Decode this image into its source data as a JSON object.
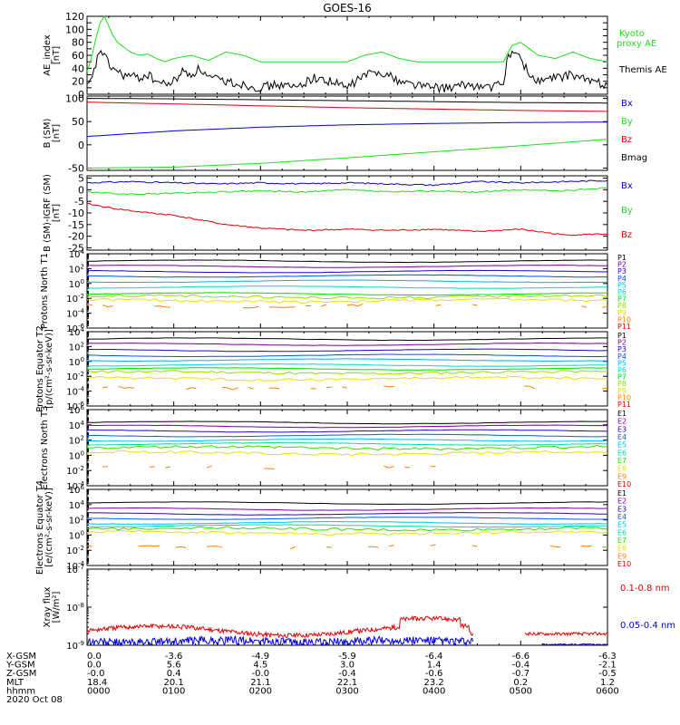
{
  "title": "GOES-16",
  "colors": {
    "black": "#000000",
    "red": "#e00000",
    "green": "#22dd22",
    "blue": "#0000dd",
    "P": [
      "#000000",
      "#7a0090",
      "#2a00c8",
      "#0050ff",
      "#00b0ff",
      "#00d8d0",
      "#00e000",
      "#90e000",
      "#e8e000",
      "#ff8000",
      "#e00000"
    ],
    "E": [
      "#000000",
      "#8000a0",
      "#3000d0",
      "#0060ff",
      "#00c0ff",
      "#00e0a0",
      "#30e000",
      "#e8e000",
      "#ff8000",
      "#e00000"
    ]
  },
  "chart_data": [
    {
      "type": "line",
      "id": "ae",
      "ylabel": "AE_index [nT]",
      "ylim": [
        0,
        120
      ],
      "yticks": [
        0,
        10,
        20,
        30,
        40,
        50,
        60,
        70,
        80,
        90,
        100,
        110,
        120
      ],
      "yticklabels": [
        "0",
        "",
        "20",
        "",
        "40",
        "",
        "60",
        "",
        "80",
        "",
        "100",
        "",
        "120"
      ],
      "legend": [
        {
          "name": "Kyoto proxy AE",
          "color": "#22dd22"
        },
        {
          "name": "Themis AE",
          "color": "#000000"
        }
      ],
      "series": [
        {
          "name": "Kyoto proxy AE",
          "color": "#22dd22",
          "x": [
            0,
            0.05,
            0.1,
            0.15,
            0.2,
            0.25,
            0.3,
            0.35,
            0.4,
            0.5,
            0.6,
            0.7,
            0.8,
            0.9,
            1.0,
            1.2,
            1.4,
            1.6,
            1.8,
            2.0,
            2.2,
            2.4,
            2.6,
            2.8,
            3.0,
            3.2,
            3.4,
            3.6,
            3.8,
            4.0,
            4.2,
            4.4,
            4.6,
            4.8,
            4.9,
            5.0,
            5.2,
            5.4,
            5.6,
            5.8,
            6.0
          ],
          "y": [
            35,
            55,
            85,
            110,
            120,
            105,
            90,
            80,
            75,
            65,
            60,
            62,
            55,
            50,
            55,
            60,
            52,
            65,
            60,
            50,
            50,
            50,
            50,
            50,
            50,
            60,
            65,
            55,
            50,
            50,
            50,
            50,
            50,
            50,
            75,
            80,
            60,
            55,
            65,
            55,
            50
          ]
        },
        {
          "name": "Themis AE",
          "color": "#000000",
          "x": [
            0,
            0.05,
            0.1,
            0.15,
            0.2,
            0.25,
            0.3,
            0.35,
            0.4,
            0.5,
            0.6,
            0.7,
            0.8,
            0.9,
            1.0,
            1.1,
            1.2,
            1.3,
            1.4,
            1.6,
            1.8,
            2.0,
            2.2,
            2.4,
            2.6,
            2.8,
            3.0,
            3.2,
            3.4,
            3.6,
            3.8,
            4.0,
            4.2,
            4.4,
            4.6,
            4.8,
            4.85,
            4.9,
            5.0,
            5.1,
            5.2,
            5.4,
            5.6,
            5.8,
            6.0
          ],
          "y": [
            10,
            20,
            45,
            70,
            60,
            45,
            40,
            35,
            30,
            28,
            25,
            30,
            20,
            15,
            20,
            35,
            30,
            40,
            25,
            20,
            15,
            10,
            15,
            10,
            25,
            20,
            10,
            30,
            35,
            20,
            15,
            10,
            10,
            15,
            10,
            15,
            60,
            65,
            55,
            30,
            20,
            25,
            30,
            20,
            15
          ]
        }
      ]
    },
    {
      "type": "line",
      "id": "bsm",
      "ylabel": "B (SM) [nT]",
      "ylim": [
        -55,
        105
      ],
      "yticks": [
        -50,
        0,
        50,
        100
      ],
      "yticklabels": [
        "-50",
        "0",
        "50",
        "100"
      ],
      "legend": [
        {
          "name": "Bx",
          "color": "#0000dd"
        },
        {
          "name": "By",
          "color": "#22dd22"
        },
        {
          "name": "Bz",
          "color": "#e00000"
        },
        {
          "name": "Bmag",
          "color": "#000000"
        }
      ],
      "series": [
        {
          "name": "Bmag",
          "color": "#000000",
          "x": [
            0,
            1,
            2,
            3,
            4,
            5,
            6
          ],
          "y": [
            100,
            99,
            97,
            95,
            93,
            91,
            90
          ]
        },
        {
          "name": "Bz",
          "color": "#e00000",
          "x": [
            0,
            1,
            2,
            3,
            4,
            5,
            6
          ],
          "y": [
            92,
            88,
            84,
            80,
            77,
            74,
            72
          ]
        },
        {
          "name": "Bx",
          "color": "#0000dd",
          "x": [
            0,
            1,
            2,
            3,
            4,
            5,
            6
          ],
          "y": [
            18,
            30,
            38,
            43,
            46,
            48,
            49
          ]
        },
        {
          "name": "By",
          "color": "#22dd22",
          "x": [
            0,
            1,
            2,
            3,
            4,
            5,
            6
          ],
          "y": [
            -50,
            -48,
            -40,
            -28,
            -15,
            -2,
            12
          ]
        }
      ]
    },
    {
      "type": "line",
      "id": "bigrf",
      "ylabel": "B (SM)-IGRF (SM) [nT]",
      "ylim": [
        -26,
        6
      ],
      "yticks": [
        -25,
        -20,
        -15,
        -10,
        -5,
        0,
        5
      ],
      "yticklabels": [
        "-25",
        "-20",
        "-15",
        "-10",
        "-5",
        "0",
        "5"
      ],
      "legend": [
        {
          "name": "Bx",
          "color": "#0000dd"
        },
        {
          "name": "By",
          "color": "#22dd22"
        },
        {
          "name": "Bz",
          "color": "#e00000"
        }
      ],
      "series": [
        {
          "name": "Bx",
          "color": "#0000dd",
          "x": [
            0,
            0.5,
            1,
            1.5,
            2,
            2.5,
            3,
            3.5,
            4,
            4.5,
            5,
            5.5,
            6
          ],
          "y": [
            3,
            3.5,
            3,
            2.5,
            3,
            2.5,
            3,
            2.5,
            2,
            3.5,
            3,
            3.5,
            4
          ]
        },
        {
          "name": "By",
          "color": "#22dd22",
          "x": [
            0,
            0.5,
            1,
            1.5,
            2,
            2.5,
            3,
            3.5,
            4,
            4.5,
            5,
            5.5,
            6
          ],
          "y": [
            -1,
            -2,
            -1.5,
            -1,
            -0.5,
            -1,
            0,
            -1,
            -0.5,
            -1,
            0,
            -0.5,
            1
          ]
        },
        {
          "name": "Bz",
          "color": "#e00000",
          "x": [
            0,
            0.3,
            0.6,
            1,
            1.3,
            1.6,
            2,
            2.5,
            3,
            3.5,
            4,
            4.5,
            5,
            5.5,
            6
          ],
          "y": [
            -6,
            -8,
            -9.5,
            -11,
            -13,
            -15,
            -16.5,
            -17.5,
            -17,
            -17.5,
            -17,
            -18,
            -17,
            -19.5,
            -19
          ]
        }
      ]
    },
    {
      "type": "line",
      "id": "pt1",
      "scale": "log",
      "ylabel": "Protons North T1",
      "ylim": [
        -6,
        4
      ],
      "yticklabels_exp": [
        4,
        2,
        0,
        -2,
        -4,
        -6
      ],
      "legend": [
        "P1",
        "P2",
        "P3",
        "P4",
        "P5",
        "P6",
        "P7",
        "P8",
        "P9",
        "P10",
        "P11"
      ],
      "levels": [
        3,
        2.3,
        1.6,
        1.0,
        0.3,
        -0.5,
        -1.4,
        -1.8,
        -2.3,
        -3.0,
        null
      ]
    },
    {
      "type": "line",
      "id": "pt2",
      "scale": "log",
      "ylabel": "Protons Equator T2 [p/(cm²-s-sr-keV)]",
      "ylim": [
        -6,
        4
      ],
      "yticklabels_exp": [
        4,
        2,
        0,
        -2,
        -4,
        -6
      ],
      "legend": [
        "P1",
        "P2",
        "P3",
        "P4",
        "P5",
        "P6",
        "P7",
        "P8",
        "P9",
        "P10",
        "P11"
      ],
      "levels": [
        3,
        2.3,
        1.5,
        0.8,
        0.2,
        -0.5,
        -1.0,
        -1.5,
        -2.3,
        -3.5,
        null
      ]
    },
    {
      "type": "line",
      "id": "et3",
      "scale": "log",
      "ylabel": "Electrons North T3",
      "ylim": [
        -4,
        6
      ],
      "yticklabels_exp": [
        6,
        4,
        2,
        0,
        -2,
        -4
      ],
      "legend": [
        "E1",
        "E2",
        "E3",
        "E4",
        "E5",
        "E6",
        "E7",
        "E8",
        "E9",
        "E10"
      ],
      "levels": [
        4.3,
        3.8,
        3.2,
        2.6,
        2.0,
        1.5,
        1.0,
        0.3,
        -1.5,
        null
      ]
    },
    {
      "type": "line",
      "id": "et4",
      "scale": "log",
      "ylabel": "Electrons Equator T4 [e/(cm²-s-sr-keV)]",
      "ylim": [
        -4,
        6
      ],
      "yticklabels_exp": [
        6,
        4,
        2,
        0,
        -2,
        -4
      ],
      "legend": [
        "E1",
        "E2",
        "E3",
        "E4",
        "E5",
        "E6",
        "E7",
        "E8",
        "E9",
        "E10"
      ],
      "levels": [
        4.2,
        3.4,
        2.8,
        2.2,
        1.6,
        1.2,
        0.8,
        0.3,
        -1.5,
        null
      ]
    },
    {
      "type": "line",
      "id": "xray",
      "scale": "log",
      "ylabel": "Xray flux [W/m²]",
      "ylim": [
        -9,
        -7
      ],
      "yticklabels_exp": [
        -7,
        -8,
        -9
      ],
      "legend": [
        {
          "name": "0.1-0.8 nm",
          "color": "#e00000"
        },
        {
          "name": "0.05-0.4 nm",
          "color": "#0000dd"
        }
      ]
    }
  ],
  "xaxis": {
    "xlim": [
      0,
      6
    ],
    "rows": [
      {
        "label": "X-GSM",
        "values": [
          "0.0",
          "-3.6",
          "-4.9",
          "-5.9",
          "-6.4",
          "-6.6",
          "-6.3"
        ]
      },
      {
        "label": "Y-GSM",
        "values": [
          "0.0",
          "5.6",
          "4.5",
          "3.0",
          "1.4",
          "-0.4",
          "-2.1"
        ]
      },
      {
        "label": "Z-GSM",
        "values": [
          "-0.0",
          "0.4",
          "-0.0",
          "-0.4",
          "-0.6",
          "-0.7",
          "-0.5"
        ]
      },
      {
        "label": "MLT",
        "values": [
          "18.4",
          "20.1",
          "21.1",
          "22.1",
          "23.2",
          "0.2",
          "1.2"
        ]
      },
      {
        "label": "hhmm",
        "values": [
          "0000",
          "0100",
          "0200",
          "0300",
          "0400",
          "0500",
          "0600"
        ]
      }
    ],
    "date": "2020 Oct 08"
  }
}
